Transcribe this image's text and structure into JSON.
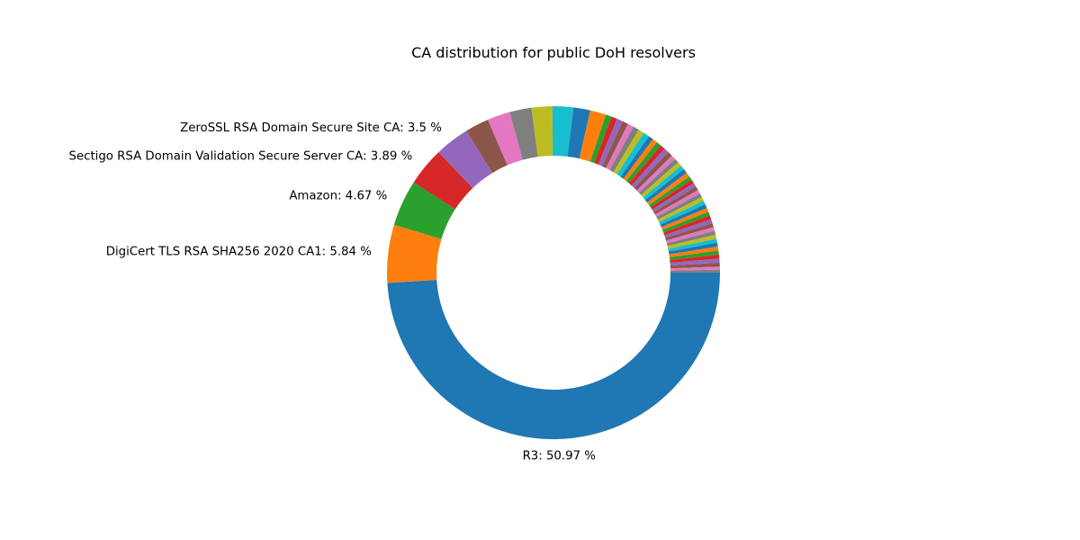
{
  "chart_data": {
    "type": "pie",
    "donut": true,
    "title": "CA distribution for public DoH resolvers",
    "start": "east",
    "direction": "clockwise",
    "colors": [
      "#1f77b4",
      "#ff7f0e",
      "#2ca02c",
      "#d62728",
      "#9467bd",
      "#8c564b",
      "#e377c2",
      "#7f7f7f",
      "#bcbd22",
      "#17becf"
    ],
    "slices": [
      {
        "label": "R3",
        "value": 50.97,
        "text": "R3: 50.97 %"
      },
      {
        "label": "DigiCert TLS RSA SHA256 2020 CA1",
        "value": 5.84,
        "text": "DigiCert TLS RSA SHA256 2020 CA1: 5.84 %"
      },
      {
        "label": "Amazon",
        "value": 4.67,
        "text": "Amazon: 4.67 %"
      },
      {
        "label": "Sectigo RSA Domain Validation Secure Server CA",
        "value": 3.89,
        "text": "Sectigo RSA Domain Validation Secure Server CA: 3.89 %"
      },
      {
        "label": "ZeroSSL RSA Domain Secure Site CA",
        "value": 3.5,
        "text": "ZeroSSL RSA Domain Secure Site CA: 3.5 %"
      },
      {
        "label": "",
        "value": 2.4
      },
      {
        "label": "",
        "value": 2.3
      },
      {
        "label": "",
        "value": 2.2
      },
      {
        "label": "",
        "value": 2.1
      },
      {
        "label": "",
        "value": 2.1
      },
      {
        "label": "",
        "value": 1.7
      },
      {
        "label": "",
        "value": 1.6
      },
      {
        "label": "",
        "value": 0.6
      },
      {
        "label": "",
        "value": 0.6
      },
      {
        "label": "",
        "value": 0.6
      },
      {
        "label": "",
        "value": 0.6
      },
      {
        "label": "",
        "value": 0.6
      },
      {
        "label": "",
        "value": 0.6
      },
      {
        "label": "",
        "value": 0.6
      },
      {
        "label": "",
        "value": 0.6
      },
      {
        "label": "",
        "value": 0.5
      },
      {
        "label": "",
        "value": 0.5
      },
      {
        "label": "",
        "value": 0.5
      },
      {
        "label": "",
        "value": 0.5
      },
      {
        "label": "",
        "value": 0.5
      },
      {
        "label": "",
        "value": 0.5
      },
      {
        "label": "",
        "value": 0.45
      },
      {
        "label": "",
        "value": 0.45
      },
      {
        "label": "",
        "value": 0.45
      },
      {
        "label": "",
        "value": 0.45
      },
      {
        "label": "",
        "value": 0.45
      },
      {
        "label": "",
        "value": 0.45
      },
      {
        "label": "",
        "value": 0.4
      },
      {
        "label": "",
        "value": 0.4
      },
      {
        "label": "",
        "value": 0.4
      },
      {
        "label": "",
        "value": 0.4
      },
      {
        "label": "",
        "value": 0.4
      },
      {
        "label": "",
        "value": 0.4
      },
      {
        "label": "",
        "value": 0.4
      },
      {
        "label": "",
        "value": 0.4
      },
      {
        "label": "",
        "value": 0.4
      },
      {
        "label": "",
        "value": 0.4
      },
      {
        "label": "",
        "value": 0.4
      },
      {
        "label": "",
        "value": 0.4
      },
      {
        "label": "",
        "value": 0.4
      },
      {
        "label": "",
        "value": 0.4
      },
      {
        "label": "",
        "value": 0.4
      },
      {
        "label": "",
        "value": 0.4
      },
      {
        "label": "",
        "value": 0.4
      },
      {
        "label": "",
        "value": 0.4
      },
      {
        "label": "",
        "value": 0.4
      },
      {
        "label": "",
        "value": 0.4
      },
      {
        "label": "",
        "value": 0.4
      },
      {
        "label": "",
        "value": 0.4
      },
      {
        "label": "",
        "value": 0.4
      },
      {
        "label": "",
        "value": 0.4
      },
      {
        "label": "",
        "value": 0.3
      },
      {
        "label": "",
        "value": 0.3
      }
    ]
  }
}
